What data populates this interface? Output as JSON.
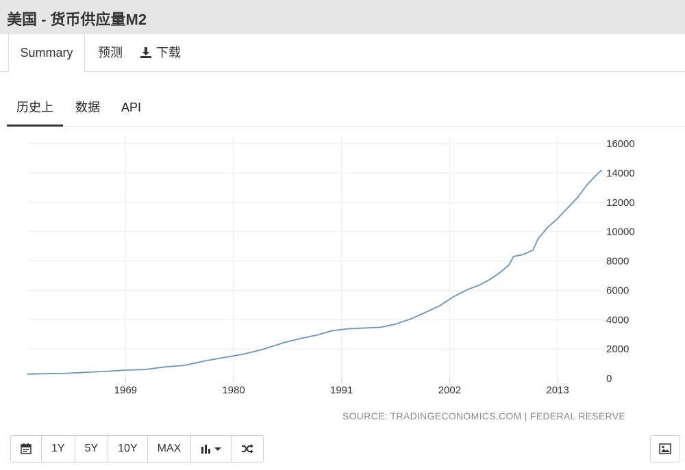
{
  "header": {
    "title": "美国 - 货币供应量M2"
  },
  "top_tabs": [
    {
      "label": "Summary"
    },
    {
      "label": "预测"
    },
    {
      "label": "下载",
      "icon": "download-icon"
    }
  ],
  "sub_tabs": [
    {
      "label": "历史上"
    },
    {
      "label": "数据"
    },
    {
      "label": "API"
    }
  ],
  "toolbar": {
    "calendar_icon": "calendar-icon",
    "buttons": [
      "1Y",
      "5Y",
      "10Y",
      "MAX"
    ],
    "chart_type_icon": "bar-chart-icon",
    "shuffle_icon": "shuffle-icon",
    "image_icon": "image-icon"
  },
  "colors": {
    "line": "#6b93b8",
    "grid": "#ebebeb",
    "active_tab_underline": "#333333"
  },
  "chart_data": {
    "type": "line",
    "title": "",
    "xlabel": "",
    "ylabel": "",
    "source": "SOURCE: TRADINGECONOMICS.COM | FEDERAL RESERVE",
    "x_ticks": [
      "1969",
      "1980",
      "1991",
      "2002",
      "2013"
    ],
    "y_ticks": [
      "0",
      "2000",
      "4000",
      "6000",
      "8000",
      "10000",
      "12000",
      "14000",
      "16000"
    ],
    "xlim": [
      1959,
      2017.6
    ],
    "ylim": [
      0,
      16000
    ],
    "grid": true,
    "y_axis_side": "right",
    "series": [
      {
        "x": [
          1959,
          1961,
          1963,
          1965,
          1967,
          1969,
          1971,
          1973,
          1975,
          1977,
          1979,
          1981,
          1983,
          1985,
          1987,
          1988.5,
          1990,
          1991.5,
          1993,
          1995,
          1996.5,
          1998,
          1999.5,
          2001,
          2002.5,
          2004,
          2005,
          2006,
          2007,
          2008,
          2008.5,
          2009.5,
          2010.5,
          2011,
          2012,
          2013,
          2014,
          2015,
          2016,
          2017,
          2017.5
        ],
        "y": [
          290,
          315,
          345,
          410,
          470,
          560,
          600,
          780,
          880,
          1180,
          1420,
          1650,
          1980,
          2410,
          2740,
          2950,
          3240,
          3370,
          3420,
          3480,
          3700,
          4040,
          4480,
          4950,
          5600,
          6100,
          6350,
          6700,
          7150,
          7700,
          8300,
          8450,
          8750,
          9500,
          10300,
          10900,
          11600,
          12300,
          13200,
          13900,
          14200
        ]
      }
    ]
  }
}
